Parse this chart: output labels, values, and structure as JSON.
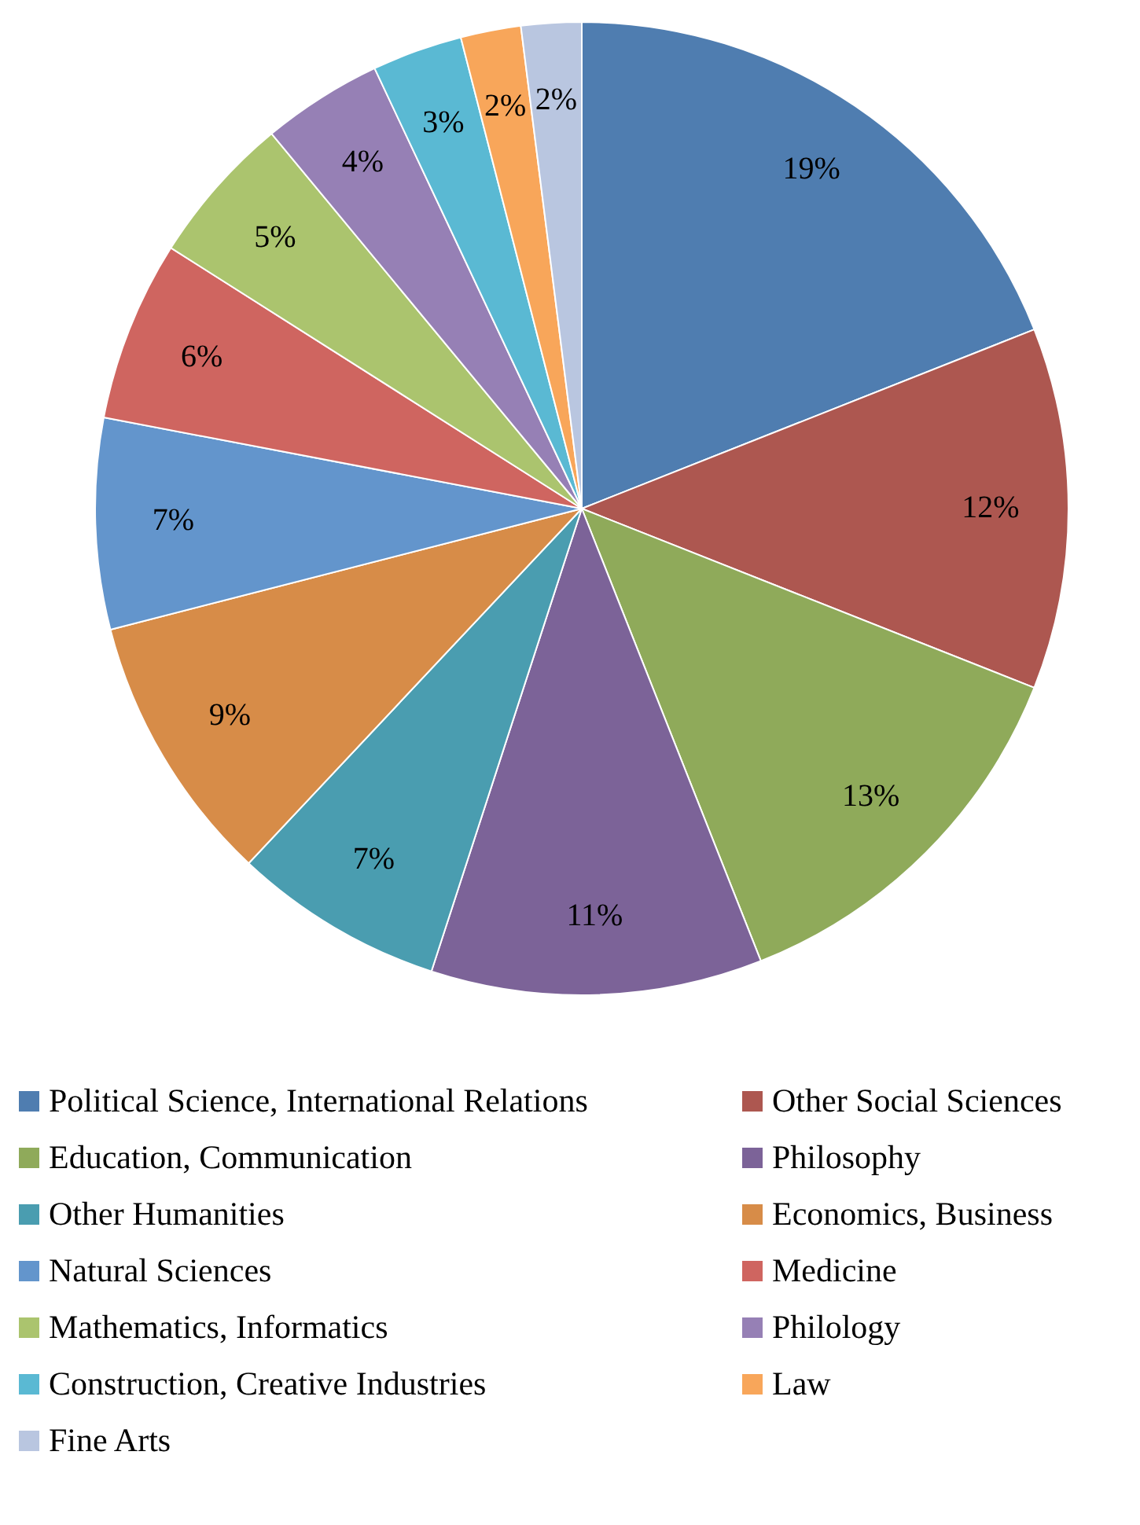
{
  "chart_data": {
    "type": "pie",
    "categories": [
      "Political Science, International Relations",
      "Other Social Sciences",
      "Education, Communication",
      "Philosophy",
      "Other Humanities",
      "Economics, Business",
      "Natural Sciences",
      "Medicine",
      "Mathematics, Informatics",
      "Philology",
      "Construction, Creative Industries",
      "Law",
      "Fine Arts"
    ],
    "values": [
      19,
      12,
      13,
      11,
      7,
      9,
      7,
      6,
      5,
      4,
      3,
      2,
      2
    ],
    "value_labels": [
      "19%",
      "12%",
      "13%",
      "11%",
      "7%",
      "9%",
      "7%",
      "6%",
      "5%",
      "4%",
      "3%",
      "2%",
      "2%"
    ],
    "colors": [
      "#4f7db0",
      "#ad5750",
      "#8faa5a",
      "#7c6398",
      "#4a9db0",
      "#d78c48",
      "#6395cc",
      "#cf6560",
      "#abc46e",
      "#9680b5",
      "#5ab9d3",
      "#f8a65a",
      "#b9c6e0"
    ],
    "legend": "bottom"
  }
}
